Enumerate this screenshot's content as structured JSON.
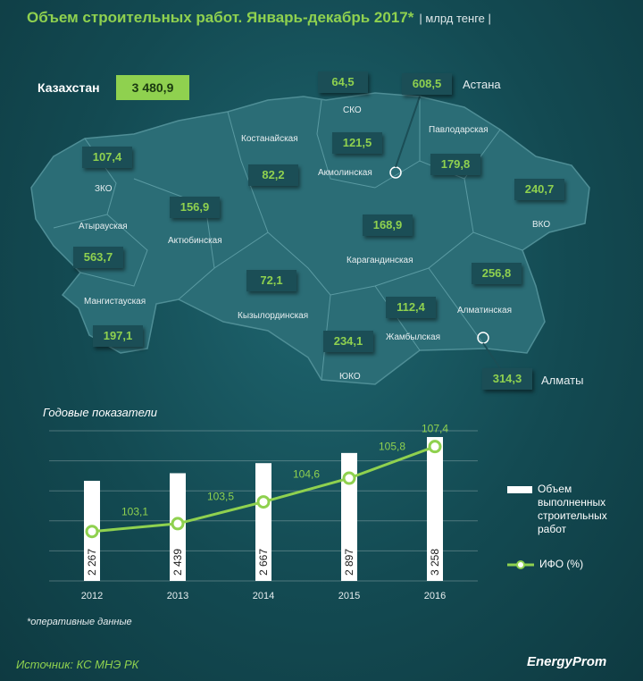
{
  "header": {
    "title": "Объем строительных работ. Январь-декабрь 2017*",
    "unit": "| млрд тенге |"
  },
  "total": {
    "label": "Казахстан",
    "value": "3 480,9"
  },
  "regions": [
    {
      "name": "ЗКО",
      "value": "107,4"
    },
    {
      "name": "Атырауская",
      "value": "563,7"
    },
    {
      "name": "Мангистауская",
      "value": "197,1"
    },
    {
      "name": "Актюбинская",
      "value": "156,9"
    },
    {
      "name": "Костанайская",
      "value": "82,2"
    },
    {
      "name": "СКО",
      "value": "64,5"
    },
    {
      "name": "Акмолинская",
      "value": "121,5"
    },
    {
      "name": "Астана",
      "value": "608,5"
    },
    {
      "name": "Павлодарская",
      "value": "179,8"
    },
    {
      "name": "ВКО",
      "value": "240,7"
    },
    {
      "name": "Карагандинская",
      "value": "168,9"
    },
    {
      "name": "Кызылординская",
      "value": "72,1"
    },
    {
      "name": "Жамбылская",
      "value": "112,4"
    },
    {
      "name": "ЮКО",
      "value": "234,1"
    },
    {
      "name": "Алматинская",
      "value": "256,8"
    },
    {
      "name": "Алматы",
      "value": "314,3"
    }
  ],
  "colors": {
    "accent": "#8fd14f",
    "map_fill": "#2b6d76",
    "background": "#134a52"
  },
  "chart_data": {
    "type": "bar",
    "title": "Годовые показатели",
    "categories": [
      "2012",
      "2013",
      "2014",
      "2015",
      "2016"
    ],
    "series": [
      {
        "name": "Объем выполненных строительных работ",
        "type": "bar",
        "values": [
          2267,
          2439,
          2667,
          2897,
          3258
        ],
        "labels": [
          "2 267",
          "2 439",
          "2 667",
          "2 897",
          "3 258"
        ]
      },
      {
        "name": "ИФО (%)",
        "type": "line",
        "values": [
          103.1,
          103.5,
          104.6,
          105.8,
          107.4
        ],
        "labels": [
          "103,1",
          "103,5",
          "104,6",
          "105,8",
          "107,4"
        ]
      }
    ],
    "grid": true
  },
  "footer": {
    "note": "*оперативные данные",
    "source": "Источник: КС МНЭ РК",
    "logo": "EnergyProm"
  }
}
